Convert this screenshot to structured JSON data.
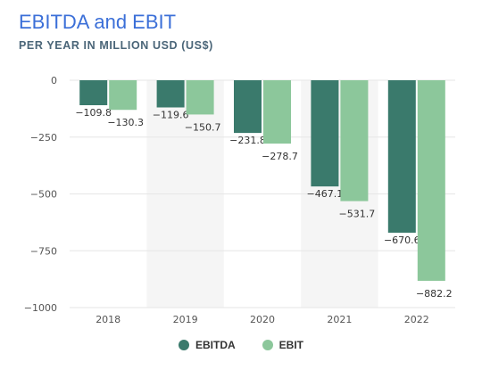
{
  "header": {
    "title": "EBITDA and EBIT",
    "subtitle": "PER YEAR IN MILLION USD (US$)"
  },
  "colors": {
    "title": "#3b6fd8",
    "ebitda": "#3a7a6c",
    "ebit": "#8cc79b",
    "band": "#f5f5f5",
    "grid": "#e6e6e6"
  },
  "chart_data": {
    "type": "bar",
    "categories": [
      "2018",
      "2019",
      "2020",
      "2021",
      "2022"
    ],
    "series": [
      {
        "name": "EBITDA",
        "values": [
          -109.8,
          -119.6,
          -231.8,
          -467.1,
          -670.6
        ],
        "labels": [
          "−109.8",
          "−119.6",
          "−231.8",
          "−467.1",
          "−670.6"
        ]
      },
      {
        "name": "EBIT",
        "values": [
          -130.3,
          -150.7,
          -278.7,
          -531.7,
          -882.2
        ],
        "labels": [
          "−130.3",
          "−150.7",
          "−278.7",
          "−531.7",
          "−882.2"
        ]
      }
    ],
    "yticks": [
      0,
      -250,
      -500,
      -750,
      -1000
    ],
    "ytick_labels": [
      "0",
      "−250",
      "−500",
      "−750",
      "−1000"
    ],
    "ylim": [
      -1000,
      0
    ],
    "grid": true,
    "legend_position": "bottom-center"
  }
}
